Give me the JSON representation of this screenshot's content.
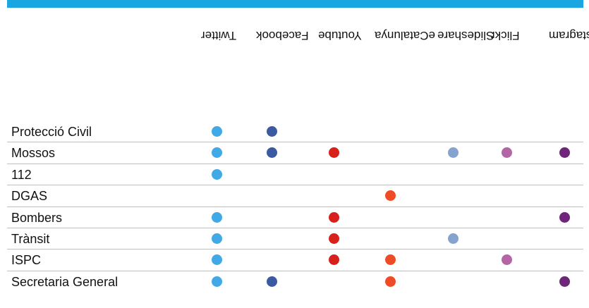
{
  "columns": [
    "Twitter",
    "Facebook",
    "Youtube",
    "eCatalunya",
    "Slideshare",
    "Flickr",
    "Instagram"
  ],
  "colors": {
    "Twitter": "#41a9e6",
    "Facebook": "#3b5aa2",
    "Youtube": "#d9211b",
    "eCatalunya": "#ef4b25",
    "Slideshare": "#85a3cd",
    "Flickr": "#b365a5",
    "Instagram": "#6f257a",
    "accent_bar": "#1aa7e1",
    "separator": "#bfbfbf"
  },
  "rows": [
    {
      "name": "Protecció Civil",
      "channels": [
        "Twitter",
        "Facebook"
      ]
    },
    {
      "name": "Mossos",
      "channels": [
        "Twitter",
        "Facebook",
        "Youtube",
        "Slideshare",
        "Flickr",
        "Instagram"
      ]
    },
    {
      "name": "112",
      "channels": [
        "Twitter"
      ]
    },
    {
      "name": "DGAS",
      "channels": [
        "eCatalunya"
      ]
    },
    {
      "name": "Bombers",
      "channels": [
        "Twitter",
        "Youtube",
        "Instagram"
      ]
    },
    {
      "name": "Trànsit",
      "channels": [
        "Twitter",
        "Youtube",
        "Slideshare"
      ]
    },
    {
      "name": "ISPC",
      "channels": [
        "Twitter",
        "Youtube",
        "eCatalunya",
        "Flickr"
      ]
    },
    {
      "name": "Secretaria General",
      "channels": [
        "Twitter",
        "Facebook",
        "eCatalunya",
        "Instagram"
      ]
    }
  ]
}
